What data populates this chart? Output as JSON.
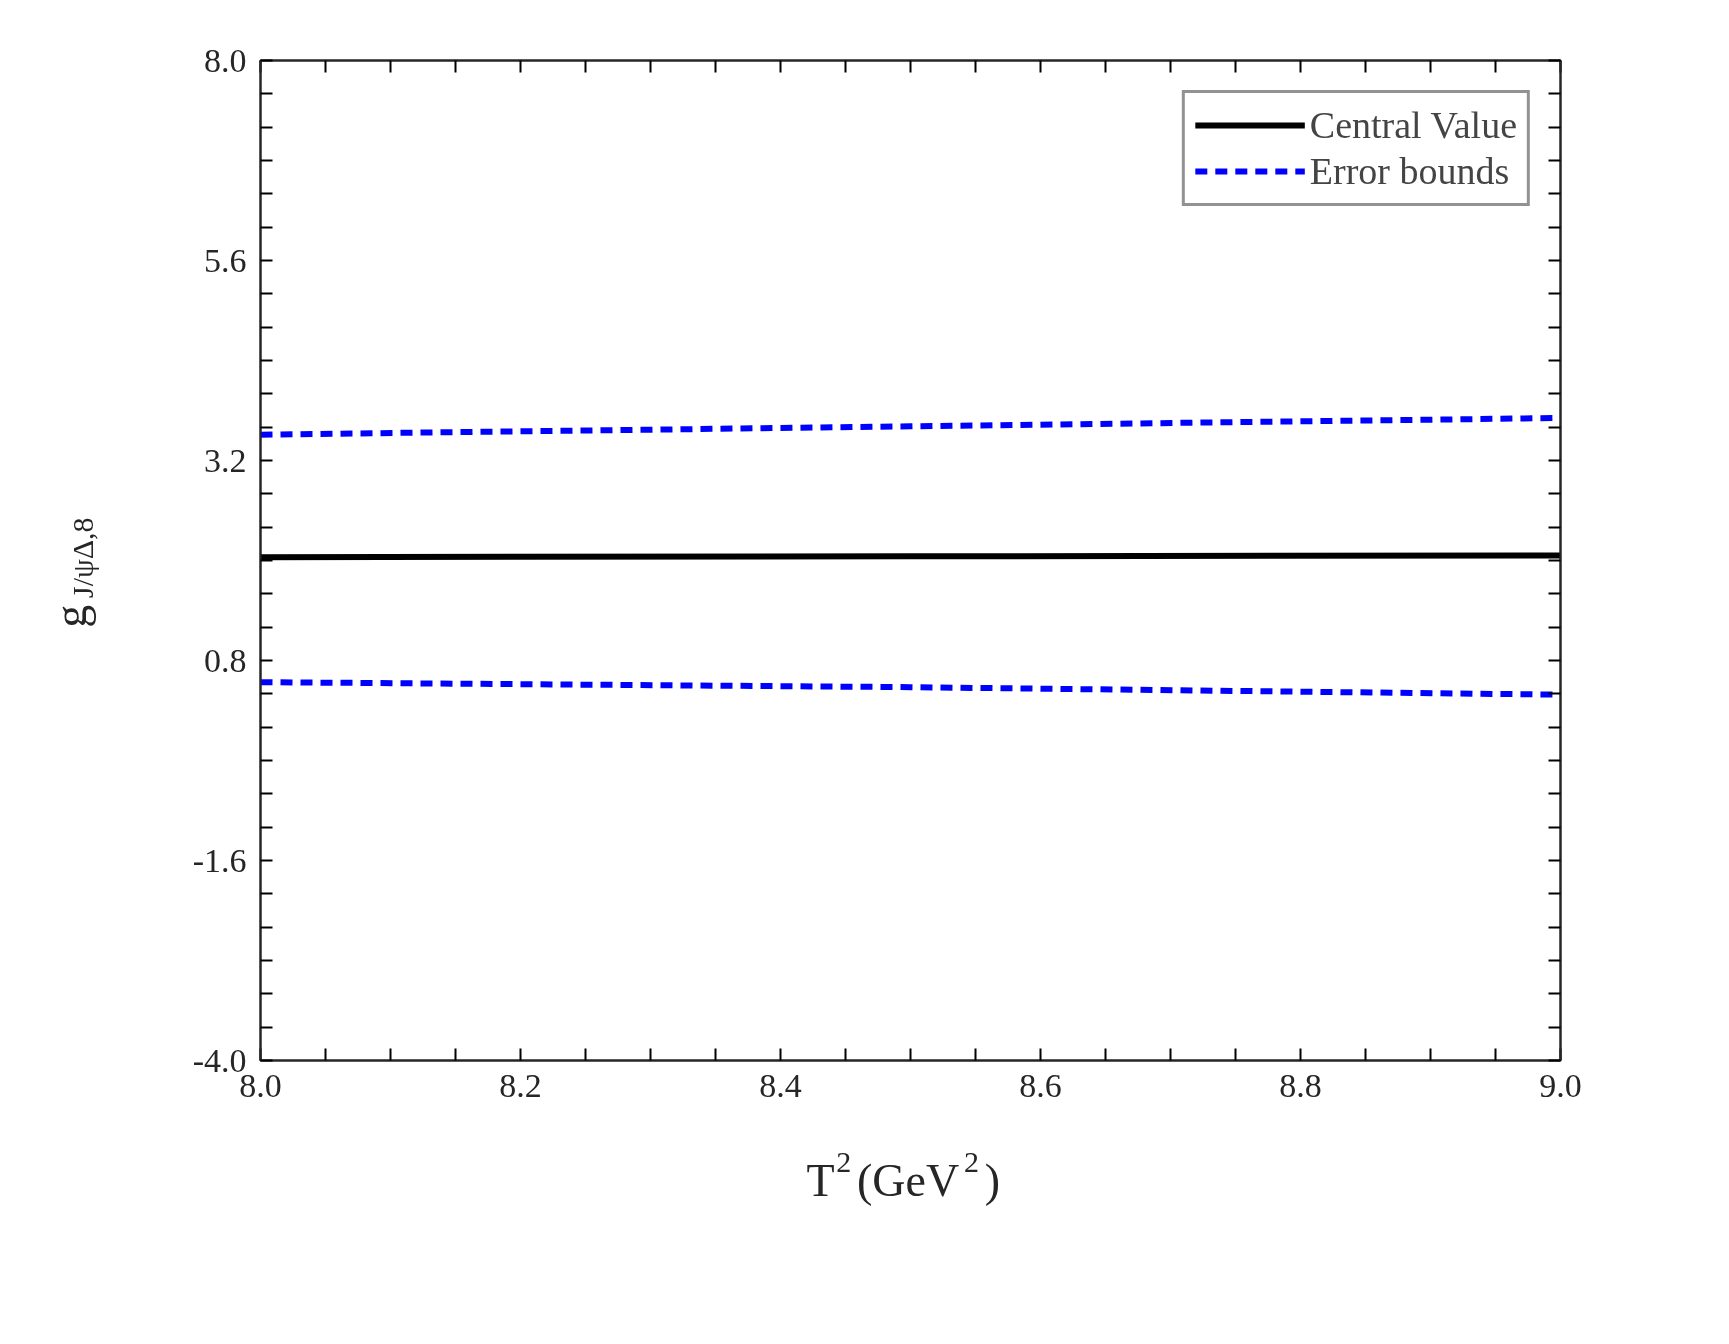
{
  "chart_data": {
    "type": "line",
    "xlabel": "T$^{2}$(GeV$^{2}$)",
    "ylabel": "g$_{J/ψΔ,8}$",
    "xlim": [
      8.0,
      9.0
    ],
    "ylim": [
      -4.0,
      8.0
    ],
    "xticks": [
      {
        "value": 8.0,
        "label": "8.0"
      },
      {
        "value": 8.2,
        "label": "8.2"
      },
      {
        "value": 8.4,
        "label": "8.4"
      },
      {
        "value": 8.6,
        "label": "8.6"
      },
      {
        "value": 8.8,
        "label": "8.8"
      },
      {
        "value": 9.0,
        "label": "9.0"
      }
    ],
    "yticks": [
      {
        "value": -4.0,
        "label": "-4.0"
      },
      {
        "value": -1.6,
        "label": "-1.6"
      },
      {
        "value": 0.8,
        "label": "0.8"
      },
      {
        "value": 3.2,
        "label": "3.2"
      },
      {
        "value": 5.6,
        "label": "5.6"
      },
      {
        "value": 8.0,
        "label": "8.0"
      }
    ],
    "grid": false,
    "legend": "top right",
    "marker": "none",
    "series": [
      {
        "name": "Central Value",
        "color": "#000000",
        "line_style": "solid",
        "x": [
          8.0,
          8.5,
          9.0
        ],
        "values": [
          2.04,
          2.05,
          2.06
        ]
      },
      {
        "name": "Error bounds",
        "color": "#0000ff",
        "line_style": "dashed",
        "x": [
          8.0,
          8.5,
          9.0
        ],
        "values": [
          3.51,
          3.61,
          3.71
        ]
      },
      {
        "color": "#0000ff",
        "line_style": "dashed",
        "x": [
          8.0,
          8.5,
          9.0
        ],
        "values": [
          0.54,
          0.48,
          0.39
        ]
      }
    ]
  }
}
